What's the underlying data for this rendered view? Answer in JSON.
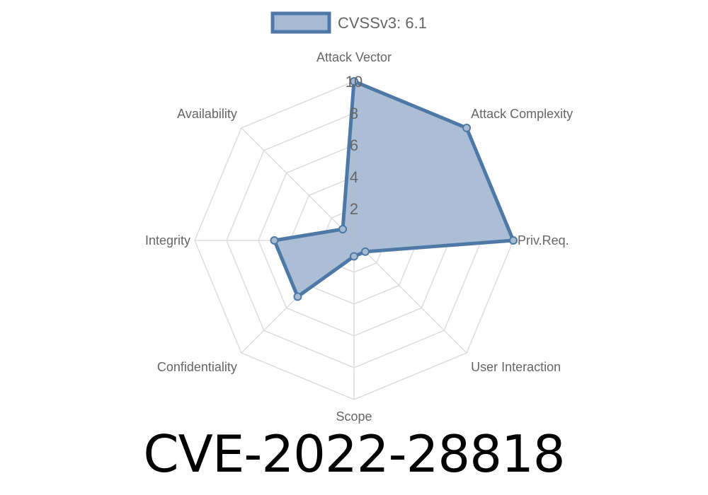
{
  "chart_data": {
    "type": "radar",
    "title": "CVE-2022-28818",
    "categories": [
      "Attack Vector",
      "Attack Complexity",
      "Priv.Req.",
      "User Interaction",
      "Scope",
      "Confidentiality",
      "Integrity",
      "Availability"
    ],
    "series": [
      {
        "name": "CVSSv3: 6.1",
        "values": [
          10,
          10,
          10,
          1,
          1,
          5,
          5,
          1
        ]
      }
    ],
    "rlim": [
      0,
      10
    ],
    "ticks": [
      "2",
      "4",
      "6",
      "8",
      "10"
    ],
    "grid": true,
    "legend": "top",
    "colors": {
      "fill": "#a6bad3",
      "line": "#4e79a7",
      "grid": "#dddddd",
      "label": "#666666"
    }
  }
}
